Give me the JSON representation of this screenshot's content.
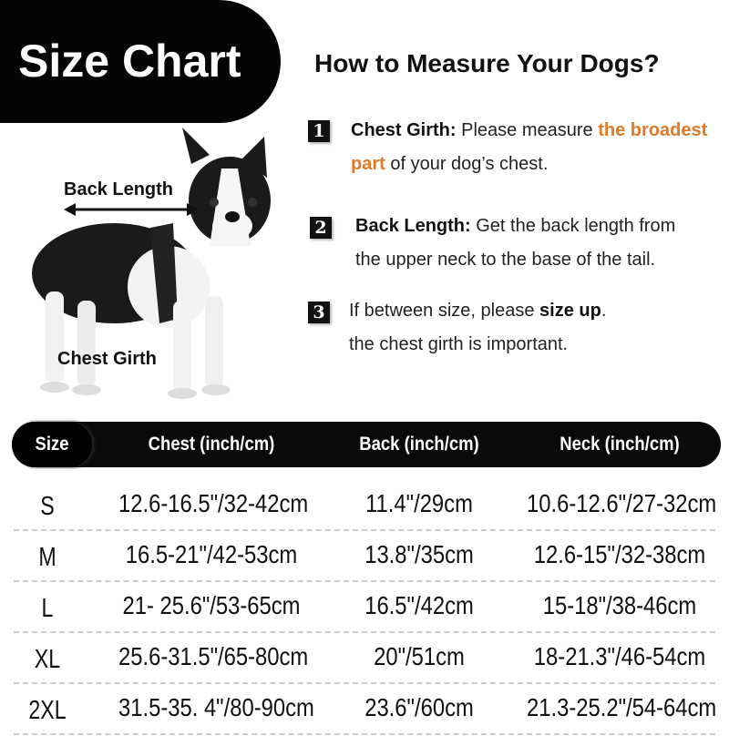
{
  "banner": {
    "title": "Size Chart"
  },
  "instructions": {
    "title": "How to Measure Your Dogs?",
    "steps": [
      {
        "number": "1",
        "label": "Chest Girth:",
        "text1": " Please measure ",
        "highlight1": "the broadest",
        "highlight2": "part",
        "text2": " of your dog’s chest."
      },
      {
        "number": "2",
        "label": "Back Length:",
        "text1": " Get the back length from",
        "text2": "the upper neck to the base of the tail."
      },
      {
        "number": "3",
        "text1": "If between size, please ",
        "bold": "size up",
        "text1_end": ".",
        "text2": "the chest girth is  important."
      }
    ],
    "highlight_color": "#e07a2a"
  },
  "illustration": {
    "back_length_label": "Back Length",
    "chest_girth_label": "Chest Girth"
  },
  "table": {
    "headers": [
      "Size",
      "Chest (inch/cm)",
      "Back (inch/cm)",
      "Neck (inch/cm)"
    ],
    "rows": [
      [
        "S",
        "12.6-16.5\"/32-42cm",
        "11.4\"/29cm",
        "10.6-12.6\"/27-32cm"
      ],
      [
        "M",
        "16.5-21\"/42-53cm",
        "13.8\"/35cm",
        "12.6-15\"/32-38cm"
      ],
      [
        "L",
        "21- 25.6\"/53-65cm",
        "16.5\"/42cm",
        "15-18\"/38-46cm"
      ],
      [
        "XL",
        "25.6-31.5\"/65-80cm",
        "20\"/51cm",
        "18-21.3\"/46-54cm"
      ],
      [
        "2XL",
        "31.5-35. 4\"/80-90cm",
        "23.6\"/60cm",
        "21.3-25.2\"/54-64cm"
      ]
    ]
  }
}
